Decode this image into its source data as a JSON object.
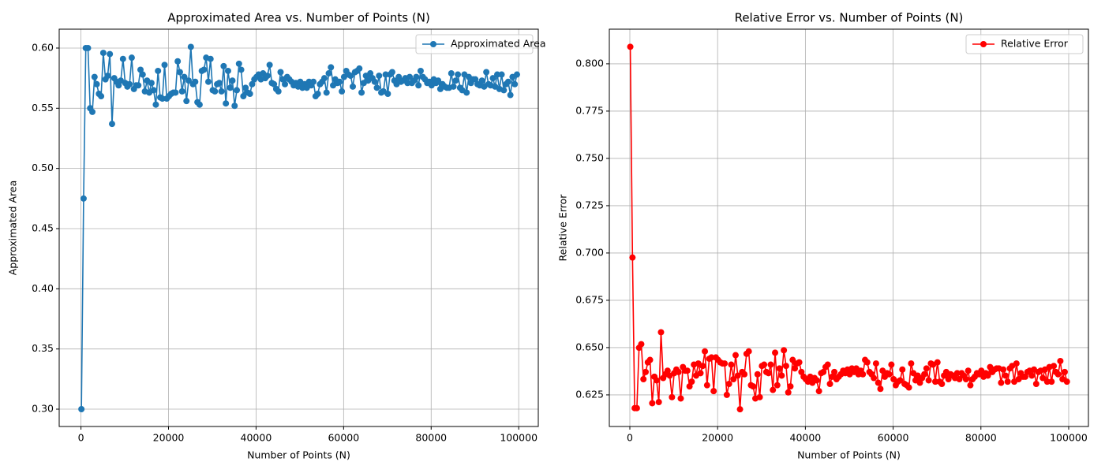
{
  "chart_data": [
    {
      "type": "line",
      "title": "Approximated Area vs. Number of Points (N)",
      "xlabel": "Number of Points (N)",
      "ylabel": "Approximated Area",
      "legend": "upper right",
      "grid": true,
      "xlim": [
        -4975,
        104475
      ],
      "ylim": [
        0.2856,
        0.6157
      ],
      "xticks": [
        0,
        20000,
        40000,
        60000,
        80000,
        100000
      ],
      "yticks": [
        {
          "value": 0.3,
          "label": "0.30"
        },
        0.35,
        {
          "value": 0.4,
          "label": "0.40"
        },
        0.45,
        {
          "value": 0.5,
          "label": "0.50"
        },
        0.55,
        {
          "value": 0.6,
          "label": "0.60"
        }
      ],
      "x": [
        100,
        600,
        1100,
        1600,
        2100,
        2600,
        3100,
        3600,
        4100,
        4600,
        5100,
        5600,
        6100,
        6600,
        7100,
        7600,
        8100,
        8600,
        9100,
        9600,
        10100,
        10600,
        11100,
        11600,
        12100,
        12600,
        13100,
        13600,
        14100,
        14600,
        15100,
        15600,
        16100,
        16600,
        17100,
        17600,
        18100,
        18600,
        19100,
        19600,
        20100,
        20600,
        21100,
        21600,
        22100,
        22600,
        23100,
        23600,
        24100,
        24600,
        25100,
        25600,
        26100,
        26600,
        27100,
        27600,
        28100,
        28600,
        29100,
        29600,
        30100,
        30600,
        31100,
        31600,
        32100,
        32600,
        33100,
        33600,
        34100,
        34600,
        35100,
        35600,
        36100,
        36600,
        37100,
        37600,
        38100,
        38600,
        39100,
        39600,
        40100,
        40600,
        41100,
        41600,
        42100,
        42600,
        43100,
        43600,
        44100,
        44600,
        45100,
        45600,
        46100,
        46600,
        47100,
        47600,
        48100,
        48600,
        49100,
        49600,
        50100,
        50600,
        51100,
        51600,
        52100,
        52600,
        53100,
        53600,
        54100,
        54600,
        55100,
        55600,
        56100,
        56600,
        57100,
        57600,
        58100,
        58600,
        59100,
        59600,
        60100,
        60600,
        61100,
        61600,
        62100,
        62600,
        63100,
        63600,
        64100,
        64600,
        65100,
        65600,
        66100,
        66600,
        67100,
        67600,
        68100,
        68600,
        69100,
        69600,
        70100,
        70600,
        71100,
        71600,
        72100,
        72600,
        73100,
        73600,
        74100,
        74600,
        75100,
        75600,
        76100,
        76600,
        77100,
        77600,
        78100,
        78600,
        79100,
        79600,
        80100,
        80600,
        81100,
        81600,
        82100,
        82600,
        83100,
        83600,
        84100,
        84600,
        85100,
        85600,
        86100,
        86600,
        87100,
        87600,
        88100,
        88600,
        89100,
        89600,
        90100,
        90600,
        91100,
        91600,
        92100,
        92600,
        93100,
        93600,
        94100,
        94600,
        95100,
        95600,
        96100,
        96600,
        97100,
        97600,
        98100,
        98600,
        99100,
        99600
      ],
      "series": [
        {
          "name": "Approximated Area",
          "color": "#1f77b4",
          "values": [
            0.3,
            0.475,
            0.6,
            0.6,
            0.55,
            0.547,
            0.576,
            0.57,
            0.562,
            0.56,
            0.596,
            0.574,
            0.577,
            0.595,
            0.537,
            0.575,
            0.572,
            0.569,
            0.573,
            0.591,
            0.571,
            0.568,
            0.57,
            0.592,
            0.566,
            0.569,
            0.569,
            0.582,
            0.578,
            0.564,
            0.573,
            0.563,
            0.571,
            0.565,
            0.553,
            0.581,
            0.559,
            0.558,
            0.586,
            0.558,
            0.56,
            0.562,
            0.563,
            0.563,
            0.589,
            0.58,
            0.564,
            0.576,
            0.556,
            0.573,
            0.601,
            0.57,
            0.572,
            0.555,
            0.553,
            0.581,
            0.582,
            0.592,
            0.572,
            0.591,
            0.565,
            0.564,
            0.57,
            0.571,
            0.564,
            0.585,
            0.554,
            0.581,
            0.567,
            0.573,
            0.552,
            0.565,
            0.587,
            0.582,
            0.56,
            0.567,
            0.563,
            0.562,
            0.57,
            0.574,
            0.576,
            0.578,
            0.574,
            0.579,
            0.575,
            0.577,
            0.586,
            0.571,
            0.57,
            0.566,
            0.564,
            0.58,
            0.574,
            0.57,
            0.576,
            0.574,
            0.572,
            0.569,
            0.571,
            0.568,
            0.572,
            0.567,
            0.57,
            0.567,
            0.572,
            0.569,
            0.572,
            0.56,
            0.562,
            0.57,
            0.572,
            0.575,
            0.563,
            0.579,
            0.584,
            0.569,
            0.574,
            0.571,
            0.572,
            0.564,
            0.576,
            0.581,
            0.578,
            0.577,
            0.568,
            0.58,
            0.581,
            0.583,
            0.563,
            0.571,
            0.577,
            0.573,
            0.579,
            0.575,
            0.572,
            0.567,
            0.577,
            0.563,
            0.564,
            0.578,
            0.562,
            0.578,
            0.58,
            0.573,
            0.57,
            0.576,
            0.572,
            0.573,
            0.575,
            0.571,
            0.576,
            0.571,
            0.573,
            0.576,
            0.569,
            0.581,
            0.576,
            0.574,
            0.571,
            0.572,
            0.569,
            0.574,
            0.571,
            0.573,
            0.566,
            0.57,
            0.568,
            0.567,
            0.567,
            0.579,
            0.568,
            0.573,
            0.578,
            0.567,
            0.565,
            0.578,
            0.563,
            0.576,
            0.571,
            0.574,
            0.574,
            0.57,
            0.569,
            0.573,
            0.568,
            0.58,
            0.57,
            0.569,
            0.575,
            0.568,
            0.578,
            0.566,
            0.578,
            0.565,
            0.57,
            0.572,
            0.561,
            0.576,
            0.57,
            0.578
          ]
        }
      ]
    },
    {
      "type": "line",
      "title": "Relative Error vs. Number of Points (N)",
      "xlabel": "Number of Points (N)",
      "ylabel": "Relative Error",
      "legend": "upper right",
      "grid": true,
      "xlim": [
        -4676,
        104500
      ],
      "ylim": [
        0.6083,
        0.8183
      ],
      "xticks": [
        0,
        20000,
        40000,
        60000,
        80000,
        100000
      ],
      "yticks": [
        0.625,
        {
          "value": 0.65,
          "label": "0.650"
        },
        0.675,
        {
          "value": 0.7,
          "label": "0.700"
        },
        0.725,
        {
          "value": 0.75,
          "label": "0.750"
        },
        0.775,
        {
          "value": 0.8,
          "label": "0.800"
        }
      ],
      "x": [
        100,
        600,
        1100,
        1600,
        2100,
        2600,
        3100,
        3600,
        4100,
        4600,
        5100,
        5600,
        6100,
        6600,
        7100,
        7600,
        8100,
        8600,
        9100,
        9600,
        10100,
        10600,
        11100,
        11600,
        12100,
        12600,
        13100,
        13600,
        14100,
        14600,
        15100,
        15600,
        16100,
        16600,
        17100,
        17600,
        18100,
        18600,
        19100,
        19600,
        20100,
        20600,
        21100,
        21600,
        22100,
        22600,
        23100,
        23600,
        24100,
        24600,
        25100,
        25600,
        26100,
        26600,
        27100,
        27600,
        28100,
        28600,
        29100,
        29600,
        30100,
        30600,
        31100,
        31600,
        32100,
        32600,
        33100,
        33600,
        34100,
        34600,
        35100,
        35600,
        36100,
        36600,
        37100,
        37600,
        38100,
        38600,
        39100,
        39600,
        40100,
        40600,
        41100,
        41600,
        42100,
        42600,
        43100,
        43600,
        44100,
        44600,
        45100,
        45600,
        46100,
        46600,
        47100,
        47600,
        48100,
        48600,
        49100,
        49600,
        50100,
        50600,
        51100,
        51600,
        52100,
        52600,
        53100,
        53600,
        54100,
        54600,
        55100,
        55600,
        56100,
        56600,
        57100,
        57600,
        58100,
        58600,
        59100,
        59600,
        60100,
        60600,
        61100,
        61600,
        62100,
        62600,
        63100,
        63600,
        64100,
        64600,
        65100,
        65600,
        66100,
        66600,
        67100,
        67600,
        68100,
        68600,
        69100,
        69600,
        70100,
        70600,
        71100,
        71600,
        72100,
        72600,
        73100,
        73600,
        74100,
        74600,
        75100,
        75600,
        76100,
        76600,
        77100,
        77600,
        78100,
        78600,
        79100,
        79600,
        80100,
        80600,
        81100,
        81600,
        82100,
        82600,
        83100,
        83600,
        84100,
        84600,
        85100,
        85600,
        86100,
        86600,
        87100,
        87600,
        88100,
        88600,
        89100,
        89600,
        90100,
        90600,
        91100,
        91600,
        92100,
        92600,
        93100,
        93600,
        94100,
        94600,
        95100,
        95600,
        96100,
        96600,
        97100,
        97600,
        98100,
        98600,
        99100,
        99600
      ],
      "series": [
        {
          "name": "Relative Error",
          "color": "#ff0000",
          "values": [
            0.809,
            0.6976,
            0.618,
            0.618,
            0.6499,
            0.6518,
            0.6333,
            0.6371,
            0.6422,
            0.6435,
            0.6206,
            0.6346,
            0.6327,
            0.6212,
            0.6581,
            0.6339,
            0.6359,
            0.6378,
            0.6352,
            0.6238,
            0.6365,
            0.6384,
            0.6371,
            0.6231,
            0.6397,
            0.6378,
            0.6378,
            0.6295,
            0.632,
            0.641,
            0.6352,
            0.6416,
            0.6365,
            0.6403,
            0.648,
            0.6301,
            0.6441,
            0.6448,
            0.627,
            0.6448,
            0.6435,
            0.6422,
            0.6416,
            0.6416,
            0.625,
            0.6308,
            0.641,
            0.6333,
            0.646,
            0.6352,
            0.6174,
            0.6371,
            0.6359,
            0.6467,
            0.648,
            0.6301,
            0.6295,
            0.6231,
            0.6359,
            0.6238,
            0.6403,
            0.641,
            0.6371,
            0.6365,
            0.641,
            0.6276,
            0.6473,
            0.6301,
            0.639,
            0.6352,
            0.6486,
            0.6403,
            0.6263,
            0.6295,
            0.6435,
            0.639,
            0.6416,
            0.6422,
            0.6371,
            0.6346,
            0.6333,
            0.632,
            0.6346,
            0.6314,
            0.6339,
            0.6327,
            0.627,
            0.6365,
            0.6371,
            0.6397,
            0.641,
            0.6308,
            0.6346,
            0.6371,
            0.6333,
            0.6346,
            0.6359,
            0.6378,
            0.6365,
            0.6384,
            0.6359,
            0.639,
            0.6371,
            0.639,
            0.6359,
            0.6378,
            0.6359,
            0.6435,
            0.6422,
            0.6371,
            0.6359,
            0.6339,
            0.6416,
            0.6314,
            0.6282,
            0.6378,
            0.6346,
            0.6365,
            0.6359,
            0.641,
            0.6333,
            0.6301,
            0.632,
            0.6327,
            0.6384,
            0.6308,
            0.6301,
            0.6289,
            0.6416,
            0.6365,
            0.6327,
            0.6352,
            0.6314,
            0.6339,
            0.6359,
            0.639,
            0.6327,
            0.6416,
            0.641,
            0.632,
            0.6422,
            0.632,
            0.6308,
            0.6352,
            0.6371,
            0.6333,
            0.6359,
            0.6352,
            0.6339,
            0.6365,
            0.6333,
            0.6365,
            0.6352,
            0.6333,
            0.6378,
            0.6301,
            0.6333,
            0.6346,
            0.6365,
            0.6359,
            0.6378,
            0.6346,
            0.6365,
            0.6352,
            0.6397,
            0.6371,
            0.6384,
            0.639,
            0.639,
            0.6314,
            0.6384,
            0.6352,
            0.632,
            0.639,
            0.6403,
            0.632,
            0.6416,
            0.6333,
            0.6365,
            0.6346,
            0.6346,
            0.6371,
            0.6378,
            0.6352,
            0.6384,
            0.6308,
            0.6371,
            0.6378,
            0.6339,
            0.6384,
            0.632,
            0.6397,
            0.632,
            0.6403,
            0.6371,
            0.6359,
            0.6429,
            0.6333,
            0.6371,
            0.632
          ]
        }
      ]
    }
  ]
}
